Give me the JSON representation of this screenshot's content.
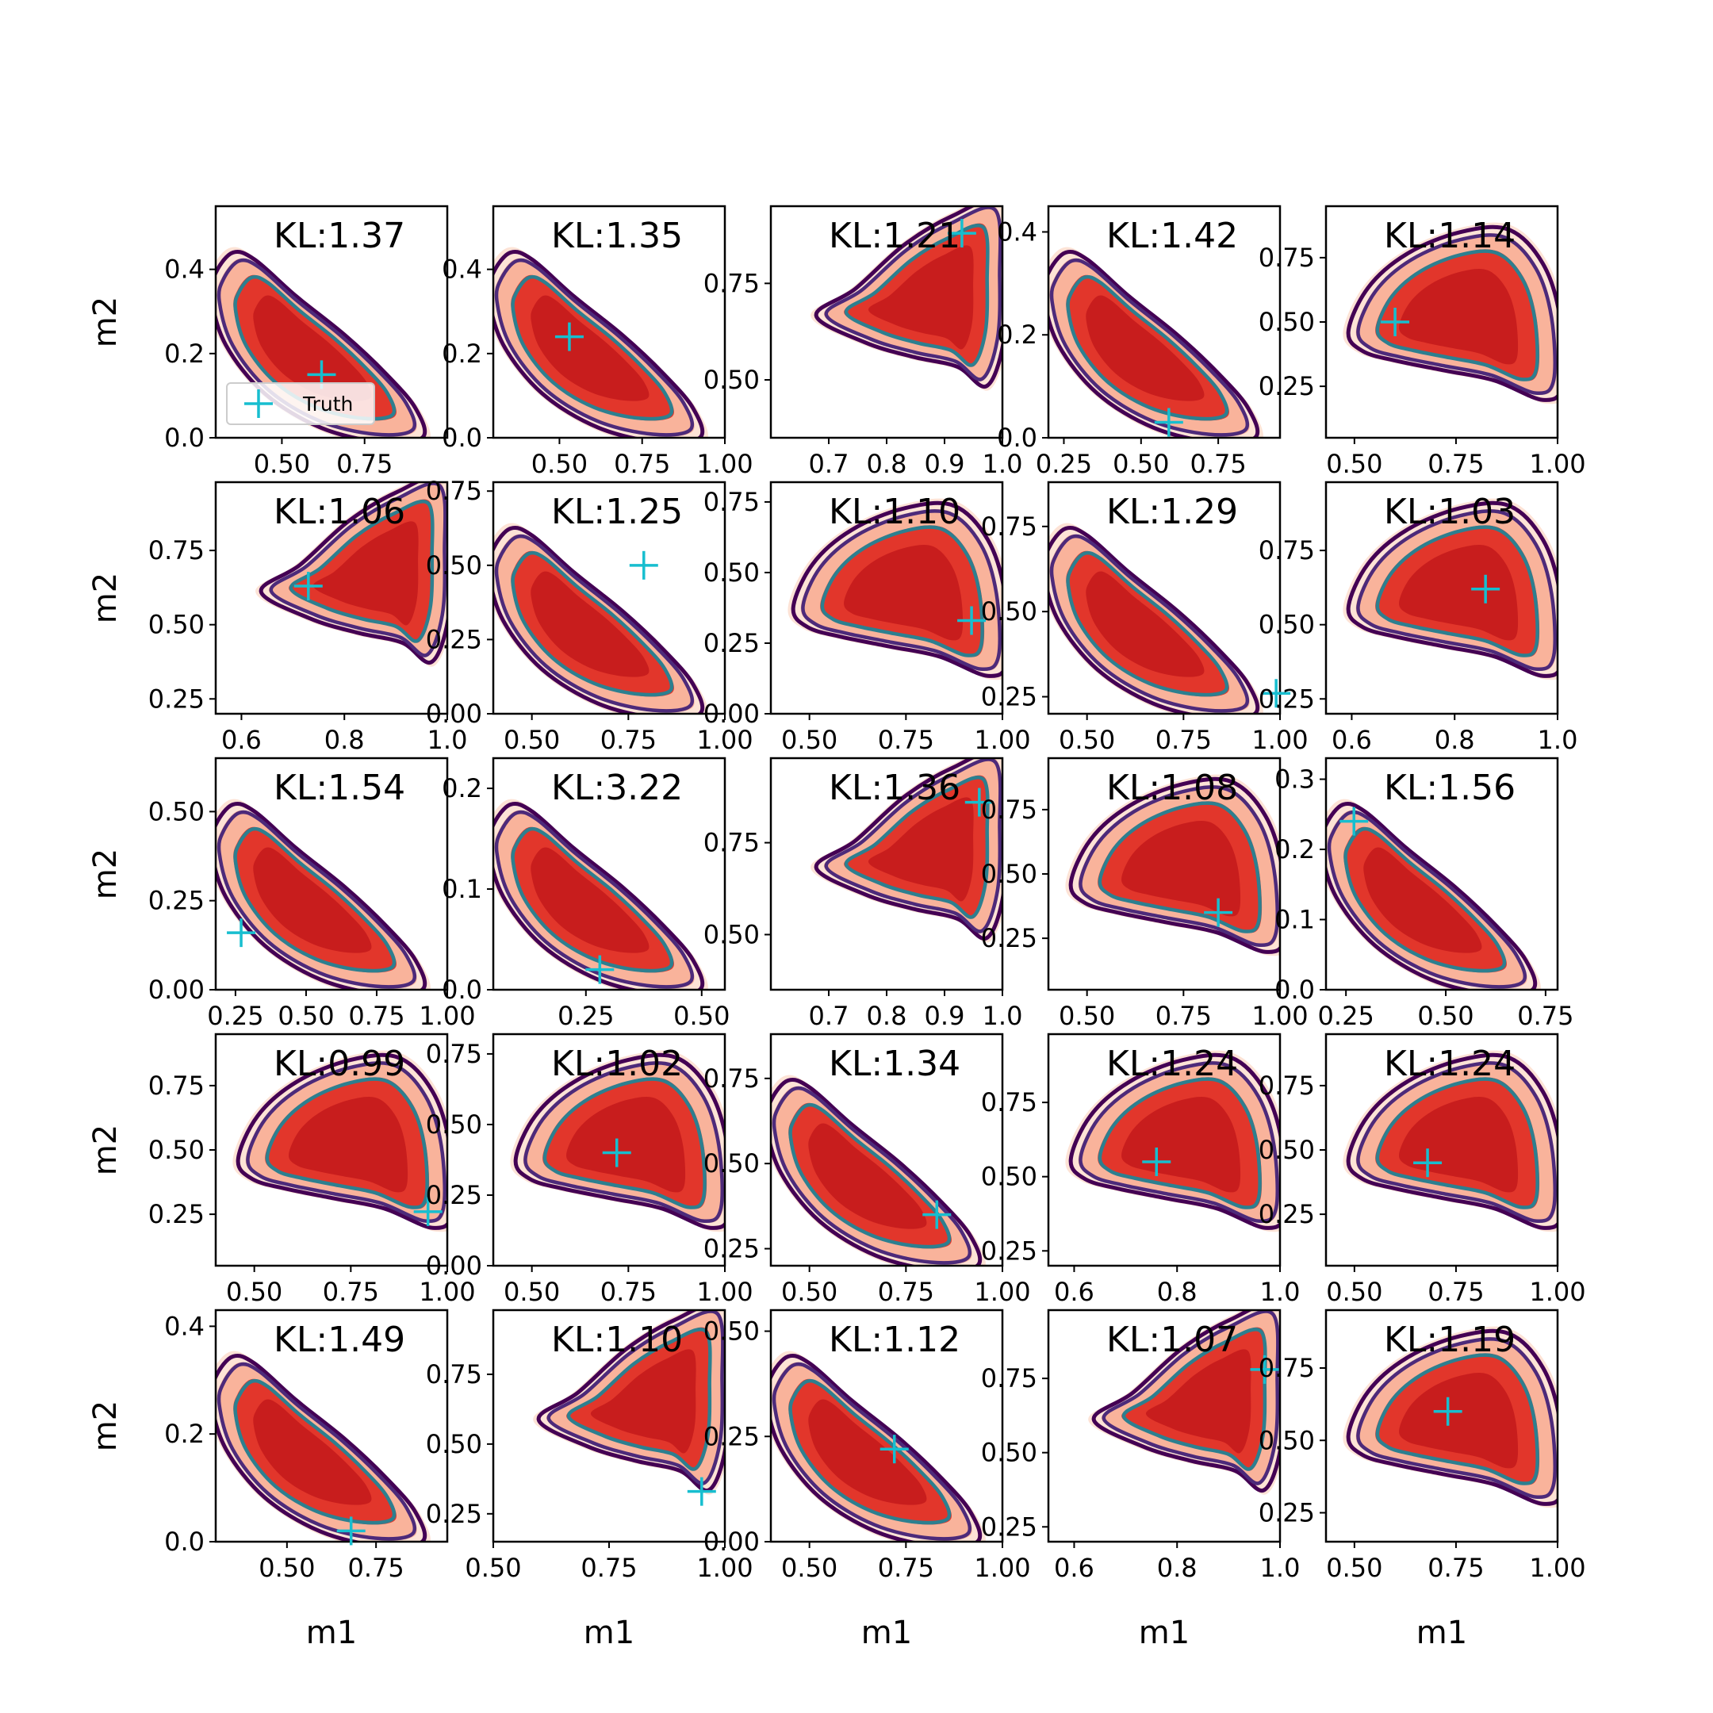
{
  "figure": {
    "xlabel": "m1",
    "ylabel": "m2",
    "legend": {
      "label": "Truth",
      "placement": "lower-left of first panel"
    },
    "colors": {
      "fill_outer": "#fde3d6",
      "fill_mid": "#f9b39b",
      "fill_inner": "#e2362b",
      "fill_core": "#c81d1d",
      "contour_outer": "#440154",
      "contour_mid": "#4d2a7a",
      "contour_inner": "#2d7f8f",
      "truth": "#17becf"
    }
  },
  "chart_data": [
    {
      "type": "contour",
      "kl_text": "KL:1.37",
      "shape": "neg",
      "xlim": [
        0.3,
        1.0
      ],
      "ylim": [
        0,
        0.55
      ],
      "xticks": [
        "0.50",
        "0.75"
      ],
      "yticks": [
        "0.0",
        "0.2",
        "0.4"
      ],
      "truth": {
        "x": 0.62,
        "y": 0.15
      }
    },
    {
      "type": "contour",
      "kl_text": "KL:1.35",
      "shape": "neg",
      "xlim": [
        0.3,
        1.0
      ],
      "ylim": [
        0,
        0.55
      ],
      "xticks": [
        "0.50",
        "0.75",
        "1.00"
      ],
      "yticks": [
        "0.0",
        "0.2",
        "0.4"
      ],
      "truth": {
        "x": 0.53,
        "y": 0.24
      }
    },
    {
      "type": "contour",
      "kl_text": "KL:1.21",
      "shape": "pos",
      "xlim": [
        0.6,
        1.0
      ],
      "ylim": [
        0.35,
        0.95
      ],
      "xticks": [
        "0.7",
        "0.8",
        "0.9",
        "1.0"
      ],
      "yticks": [
        "0.50",
        "0.75"
      ],
      "truth": {
        "x": 0.93,
        "y": 0.88
      }
    },
    {
      "type": "contour",
      "kl_text": "KL:1.42",
      "shape": "neg",
      "xlim": [
        0.2,
        0.95
      ],
      "ylim": [
        0,
        0.45
      ],
      "xticks": [
        "0.25",
        "0.50",
        "0.75"
      ],
      "yticks": [
        "0.0",
        "0.2",
        "0.4"
      ],
      "truth": {
        "x": 0.59,
        "y": 0.03
      }
    },
    {
      "type": "contour",
      "kl_text": "KL:1.14",
      "shape": "tri",
      "xlim": [
        0.43,
        1.0
      ],
      "ylim": [
        0.05,
        0.95
      ],
      "xticks": [
        "0.50",
        "0.75",
        "1.00"
      ],
      "yticks": [
        "0.25",
        "0.50",
        "0.75"
      ],
      "truth": {
        "x": 0.6,
        "y": 0.5
      }
    },
    {
      "type": "contour",
      "kl_text": "KL:1.06",
      "shape": "pos",
      "xlim": [
        0.55,
        1.0
      ],
      "ylim": [
        0.2,
        0.98
      ],
      "xticks": [
        "0.6",
        "0.8",
        "1.0"
      ],
      "yticks": [
        "0.25",
        "0.50",
        "0.75"
      ],
      "truth": {
        "x": 0.73,
        "y": 0.63
      }
    },
    {
      "type": "contour",
      "kl_text": "KL:1.25",
      "shape": "neg",
      "xlim": [
        0.4,
        1.0
      ],
      "ylim": [
        0,
        0.78
      ],
      "xticks": [
        "0.50",
        "0.75",
        "1.00"
      ],
      "yticks": [
        "0.00",
        "0.25",
        "0.50",
        "0.75"
      ],
      "truth": {
        "x": 0.79,
        "y": 0.5
      }
    },
    {
      "type": "contour",
      "kl_text": "KL:1.10",
      "shape": "tri",
      "xlim": [
        0.4,
        1.0
      ],
      "ylim": [
        0,
        0.82
      ],
      "xticks": [
        "0.50",
        "0.75",
        "1.00"
      ],
      "yticks": [
        "0.00",
        "0.25",
        "0.50",
        "0.75"
      ],
      "truth": {
        "x": 0.92,
        "y": 0.33
      }
    },
    {
      "type": "contour",
      "kl_text": "KL:1.29",
      "shape": "neg",
      "xlim": [
        0.4,
        1.0
      ],
      "ylim": [
        0.2,
        0.88
      ],
      "xticks": [
        "0.50",
        "0.75",
        "1.00"
      ],
      "yticks": [
        "0.25",
        "0.50",
        "0.75"
      ],
      "truth": {
        "x": 0.99,
        "y": 0.26
      }
    },
    {
      "type": "contour",
      "kl_text": "KL:1.03",
      "shape": "tri",
      "xlim": [
        0.55,
        1.0
      ],
      "ylim": [
        0.2,
        0.98
      ],
      "xticks": [
        "0.6",
        "0.8",
        "1.0"
      ],
      "yticks": [
        "0.25",
        "0.50",
        "0.75"
      ],
      "truth": {
        "x": 0.86,
        "y": 0.62
      }
    },
    {
      "type": "contour",
      "kl_text": "KL:1.54",
      "shape": "neg",
      "xlim": [
        0.18,
        1.0
      ],
      "ylim": [
        0,
        0.65
      ],
      "xticks": [
        "0.25",
        "0.50",
        "0.75",
        "1.00"
      ],
      "yticks": [
        "0.00",
        "0.25",
        "0.50"
      ],
      "truth": {
        "x": 0.27,
        "y": 0.16
      }
    },
    {
      "type": "contour",
      "kl_text": "KL:3.22",
      "shape": "neg",
      "xlim": [
        0.05,
        0.55
      ],
      "ylim": [
        0,
        0.23
      ],
      "xticks": [
        "0.25",
        "0.50"
      ],
      "yticks": [
        "0.0",
        "0.1",
        "0.2"
      ],
      "truth": {
        "x": 0.28,
        "y": 0.02
      }
    },
    {
      "type": "contour",
      "kl_text": "KL:1.36",
      "shape": "pos",
      "xlim": [
        0.6,
        1.0
      ],
      "ylim": [
        0.35,
        0.98
      ],
      "xticks": [
        "0.7",
        "0.8",
        "0.9",
        "1.0"
      ],
      "yticks": [
        "0.50",
        "0.75"
      ],
      "truth": {
        "x": 0.96,
        "y": 0.86
      }
    },
    {
      "type": "contour",
      "kl_text": "KL:1.08",
      "shape": "tri",
      "xlim": [
        0.4,
        1.0
      ],
      "ylim": [
        0.05,
        0.95
      ],
      "xticks": [
        "0.50",
        "0.75",
        "1.00"
      ],
      "yticks": [
        "0.25",
        "0.50",
        "0.75"
      ],
      "truth": {
        "x": 0.84,
        "y": 0.35
      }
    },
    {
      "type": "contour",
      "kl_text": "KL:1.56",
      "shape": "neg",
      "xlim": [
        0.2,
        0.78
      ],
      "ylim": [
        0,
        0.33
      ],
      "xticks": [
        "0.25",
        "0.50",
        "0.75"
      ],
      "yticks": [
        "0.0",
        "0.1",
        "0.2",
        "0.3"
      ],
      "truth": {
        "x": 0.27,
        "y": 0.24
      }
    },
    {
      "type": "contour",
      "kl_text": "KL:0.99",
      "shape": "tri",
      "xlim": [
        0.4,
        1.0
      ],
      "ylim": [
        0.05,
        0.95
      ],
      "xticks": [
        "0.50",
        "0.75",
        "1.00"
      ],
      "yticks": [
        "0.25",
        "0.50",
        "0.75"
      ],
      "truth": {
        "x": 0.95,
        "y": 0.26
      }
    },
    {
      "type": "contour",
      "kl_text": "KL:1.02",
      "shape": "tri",
      "xlim": [
        0.4,
        1.0
      ],
      "ylim": [
        0,
        0.82
      ],
      "xticks": [
        "0.50",
        "0.75",
        "1.00"
      ],
      "yticks": [
        "0.00",
        "0.25",
        "0.50",
        "0.75"
      ],
      "truth": {
        "x": 0.72,
        "y": 0.4
      }
    },
    {
      "type": "contour",
      "kl_text": "KL:1.34",
      "shape": "neg",
      "xlim": [
        0.4,
        1.0
      ],
      "ylim": [
        0.2,
        0.88
      ],
      "xticks": [
        "0.50",
        "0.75",
        "1.00"
      ],
      "yticks": [
        "0.25",
        "0.50",
        "0.75"
      ],
      "truth": {
        "x": 0.83,
        "y": 0.35
      }
    },
    {
      "type": "contour",
      "kl_text": "KL:1.24",
      "shape": "tri",
      "xlim": [
        0.55,
        1.0
      ],
      "ylim": [
        0.2,
        0.98
      ],
      "xticks": [
        "0.6",
        "0.8",
        "1.0"
      ],
      "yticks": [
        "0.25",
        "0.50",
        "0.75"
      ],
      "truth": {
        "x": 0.76,
        "y": 0.55
      }
    },
    {
      "type": "contour",
      "kl_text": "KL:1.24",
      "shape": "tri",
      "xlim": [
        0.43,
        1.0
      ],
      "ylim": [
        0.05,
        0.95
      ],
      "xticks": [
        "0.50",
        "0.75",
        "1.00"
      ],
      "yticks": [
        "0.25",
        "0.50",
        "0.75"
      ],
      "truth": {
        "x": 0.68,
        "y": 0.45
      }
    },
    {
      "type": "contour",
      "kl_text": "KL:1.49",
      "shape": "neg",
      "xlim": [
        0.3,
        0.95
      ],
      "ylim": [
        0,
        0.43
      ],
      "xticks": [
        "0.50",
        "0.75"
      ],
      "yticks": [
        "0.0",
        "0.2",
        "0.4"
      ],
      "truth": {
        "x": 0.68,
        "y": 0.02
      }
    },
    {
      "type": "contour",
      "kl_text": "KL:1.10",
      "shape": "pos",
      "xlim": [
        0.5,
        1.0
      ],
      "ylim": [
        0.15,
        0.98
      ],
      "xticks": [
        "0.50",
        "0.75",
        "1.00"
      ],
      "yticks": [
        "0.25",
        "0.50",
        "0.75"
      ],
      "truth": {
        "x": 0.95,
        "y": 0.33
      }
    },
    {
      "type": "contour",
      "kl_text": "KL:1.12",
      "shape": "neg",
      "xlim": [
        0.4,
        1.0
      ],
      "ylim": [
        0,
        0.55
      ],
      "xticks": [
        "0.50",
        "0.75",
        "1.00"
      ],
      "yticks": [
        "0.00",
        "0.25",
        "0.50"
      ],
      "truth": {
        "x": 0.72,
        "y": 0.22
      }
    },
    {
      "type": "contour",
      "kl_text": "KL:1.07",
      "shape": "pos",
      "xlim": [
        0.55,
        1.0
      ],
      "ylim": [
        0.2,
        0.98
      ],
      "xticks": [
        "0.6",
        "0.8",
        "1.0"
      ],
      "yticks": [
        "0.25",
        "0.50",
        "0.75"
      ],
      "truth": {
        "x": 0.97,
        "y": 0.78
      }
    },
    {
      "type": "contour",
      "kl_text": "KL:1.19",
      "shape": "tri",
      "xlim": [
        0.43,
        1.0
      ],
      "ylim": [
        0.15,
        0.95
      ],
      "xticks": [
        "0.50",
        "0.75",
        "1.00"
      ],
      "yticks": [
        "0.25",
        "0.50",
        "0.75"
      ],
      "truth": {
        "x": 0.73,
        "y": 0.6
      }
    }
  ]
}
